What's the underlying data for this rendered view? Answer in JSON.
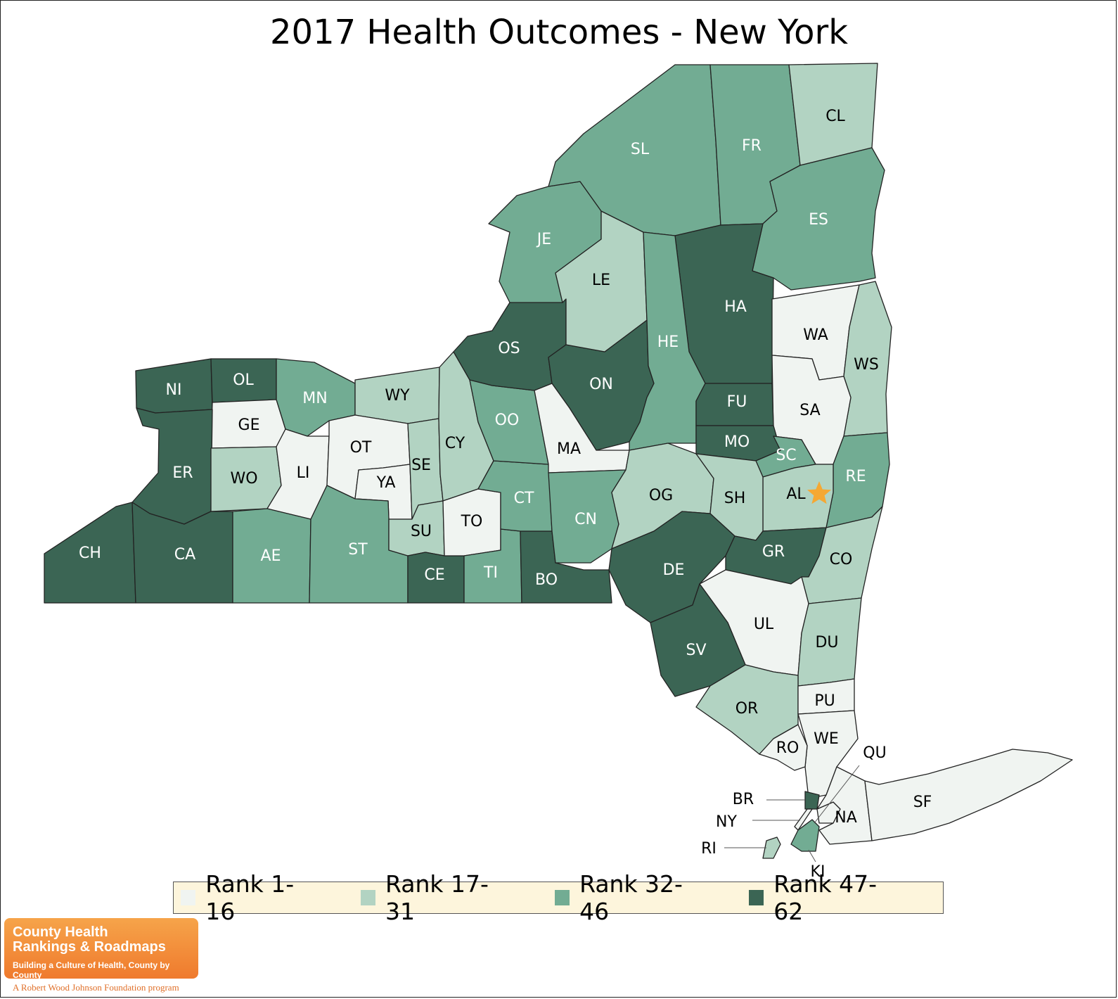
{
  "title": "2017 Health Outcomes - New York",
  "colors": {
    "rank_1_16": "#f0f4f1",
    "rank_17_31": "#b2d3c2",
    "rank_32_46": "#72ac93",
    "rank_47_62": "#3b6554",
    "border": "#222222",
    "capital_star": "#f5a833",
    "legend_bg": "#fdf5dc"
  },
  "legend": [
    {
      "label": "Rank 1-16",
      "class": "rank_1_16"
    },
    {
      "label": "Rank 17-31",
      "class": "rank_17_31"
    },
    {
      "label": "Rank 32-46",
      "class": "rank_32_46"
    },
    {
      "label": "Rank 47-62",
      "class": "rank_47_62"
    }
  ],
  "counties": [
    {
      "abbr": "NI",
      "class": "rank_47_62"
    },
    {
      "abbr": "OL",
      "class": "rank_47_62"
    },
    {
      "abbr": "GE",
      "class": "rank_1_16"
    },
    {
      "abbr": "MN",
      "class": "rank_32_46"
    },
    {
      "abbr": "WY",
      "class": "rank_17_31"
    },
    {
      "abbr": "ER",
      "class": "rank_47_62"
    },
    {
      "abbr": "WO",
      "class": "rank_17_31"
    },
    {
      "abbr": "LI",
      "class": "rank_1_16"
    },
    {
      "abbr": "OT",
      "class": "rank_1_16"
    },
    {
      "abbr": "YA",
      "class": "rank_1_16"
    },
    {
      "abbr": "SE",
      "class": "rank_17_31"
    },
    {
      "abbr": "CY",
      "class": "rank_17_31"
    },
    {
      "abbr": "CH",
      "class": "rank_47_62"
    },
    {
      "abbr": "CA",
      "class": "rank_47_62"
    },
    {
      "abbr": "AE",
      "class": "rank_32_46"
    },
    {
      "abbr": "ST",
      "class": "rank_32_46"
    },
    {
      "abbr": "SU",
      "class": "rank_17_31"
    },
    {
      "abbr": "CE",
      "class": "rank_47_62"
    },
    {
      "abbr": "TO",
      "class": "rank_1_16"
    },
    {
      "abbr": "TI",
      "class": "rank_32_46"
    },
    {
      "abbr": "BO",
      "class": "rank_47_62"
    },
    {
      "abbr": "CT",
      "class": "rank_32_46"
    },
    {
      "abbr": "OO",
      "class": "rank_32_46"
    },
    {
      "abbr": "OS",
      "class": "rank_47_62"
    },
    {
      "abbr": "ON",
      "class": "rank_47_62"
    },
    {
      "abbr": "MA",
      "class": "rank_1_16"
    },
    {
      "abbr": "CN",
      "class": "rank_32_46"
    },
    {
      "abbr": "JE",
      "class": "rank_32_46"
    },
    {
      "abbr": "LE",
      "class": "rank_17_31"
    },
    {
      "abbr": "SL",
      "class": "rank_32_46"
    },
    {
      "abbr": "FR",
      "class": "rank_32_46"
    },
    {
      "abbr": "CL",
      "class": "rank_17_31"
    },
    {
      "abbr": "ES",
      "class": "rank_32_46"
    },
    {
      "abbr": "HA",
      "class": "rank_47_62"
    },
    {
      "abbr": "HE",
      "class": "rank_32_46"
    },
    {
      "abbr": "WA",
      "class": "rank_1_16"
    },
    {
      "abbr": "WS",
      "class": "rank_17_31"
    },
    {
      "abbr": "SA",
      "class": "rank_1_16"
    },
    {
      "abbr": "FU",
      "class": "rank_47_62"
    },
    {
      "abbr": "MO",
      "class": "rank_47_62"
    },
    {
      "abbr": "SC",
      "class": "rank_32_46"
    },
    {
      "abbr": "RE",
      "class": "rank_32_46"
    },
    {
      "abbr": "AL",
      "class": "rank_17_31"
    },
    {
      "abbr": "OG",
      "class": "rank_17_31"
    },
    {
      "abbr": "SH",
      "class": "rank_17_31"
    },
    {
      "abbr": "DE",
      "class": "rank_47_62"
    },
    {
      "abbr": "GR",
      "class": "rank_47_62"
    },
    {
      "abbr": "CO",
      "class": "rank_17_31"
    },
    {
      "abbr": "UL",
      "class": "rank_1_16"
    },
    {
      "abbr": "DU",
      "class": "rank_17_31"
    },
    {
      "abbr": "SV",
      "class": "rank_47_62"
    },
    {
      "abbr": "OR",
      "class": "rank_17_31"
    },
    {
      "abbr": "PU",
      "class": "rank_1_16"
    },
    {
      "abbr": "WE",
      "class": "rank_1_16"
    },
    {
      "abbr": "RO",
      "class": "rank_1_16"
    },
    {
      "abbr": "BR",
      "class": "rank_47_62"
    },
    {
      "abbr": "NY",
      "class": "rank_1_16"
    },
    {
      "abbr": "QU",
      "class": "rank_1_16"
    },
    {
      "abbr": "KI",
      "class": "rank_32_46"
    },
    {
      "abbr": "RI",
      "class": "rank_17_31"
    },
    {
      "abbr": "NA",
      "class": "rank_1_16"
    },
    {
      "abbr": "SF",
      "class": "rank_1_16"
    }
  ],
  "logo": {
    "line1": "County Health",
    "line2": "Rankings & Roadmaps",
    "tagline": "Building a Culture of Health, County by County",
    "sub": "A Robert Wood Johnson Foundation program"
  }
}
